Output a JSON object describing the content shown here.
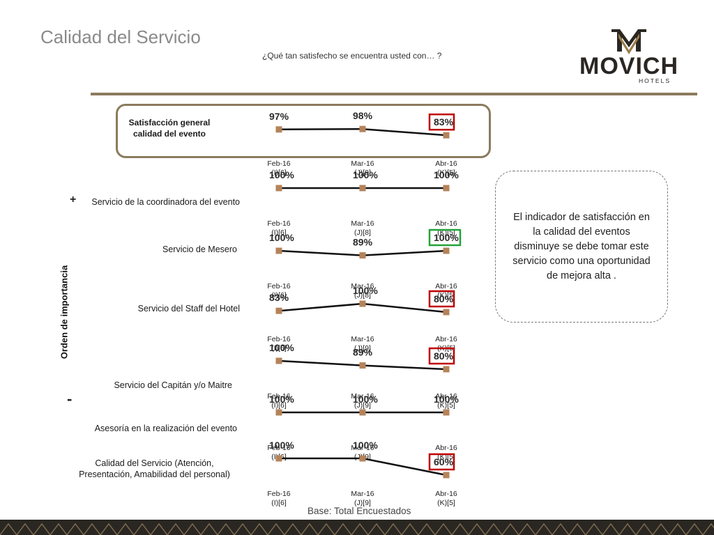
{
  "header": {
    "title": "Calidad del Servicio",
    "subtitle": "¿Qué tan satisfecho se encuentra usted con… ?"
  },
  "logo": {
    "brand": "MOVICH",
    "tagline": "HOTELS"
  },
  "axis": {
    "label": "Orden de importancia",
    "plus": "+",
    "minus": "-"
  },
  "note": "El indicador de satisfacción en la calidad del eventos disminuye se debe tomar este servicio como una oportunidad de mejora alta .",
  "footer": {
    "base": "Base: Total Encuestados"
  },
  "colors": {
    "marker": "#b5835a",
    "gold": "#8b7b5e",
    "red_box": "#c00000",
    "green_box": "#22a33a"
  },
  "chart_data": {
    "type": "line",
    "y_unit": "%",
    "points": [
      "Feb-16",
      "Mar-16",
      "Abr-16"
    ],
    "rows": [
      {
        "label_lines": [
          "Satisfacción general",
          "calidad del evento"
        ],
        "bold": true,
        "highlight": true,
        "values": [
          97,
          98,
          83
        ],
        "value_labels": [
          "97%",
          "98%",
          "83%"
        ],
        "box": [
          null,
          null,
          "red"
        ],
        "ticks": [
          [
            "Feb-16",
            "(I)[6]"
          ],
          [
            "Mar-16",
            "(J)[9]"
          ],
          [
            "Abr-16",
            "(K)[5]"
          ]
        ]
      },
      {
        "label_lines": [
          "Servicio de la coordinadora del evento"
        ],
        "values": [
          100,
          100,
          100
        ],
        "value_labels": [
          "100%",
          "100%",
          "100%"
        ],
        "box": [
          null,
          null,
          null
        ],
        "ticks": [
          [
            "Feb-16",
            "(I)[6]"
          ],
          [
            "Mar-16",
            "(J)[8]"
          ],
          [
            "Abr-16",
            "(K)[5]"
          ]
        ]
      },
      {
        "label_lines": [
          "Servicio  de Mesero"
        ],
        "values": [
          100,
          89,
          100
        ],
        "value_labels": [
          "100%",
          "89%",
          "100%"
        ],
        "box": [
          null,
          null,
          "green"
        ],
        "ticks": [
          [
            "Feb-16",
            "(I)[6]"
          ],
          [
            "Mar-16",
            "(J)[8]"
          ],
          [
            "Abr-16",
            "(K)[5]"
          ]
        ]
      },
      {
        "label_lines": [
          "Servicio del Staff del Hotel"
        ],
        "values": [
          83,
          100,
          80
        ],
        "value_labels": [
          "83%",
          "100%",
          "80%"
        ],
        "box": [
          null,
          null,
          "red"
        ],
        "ticks": [
          [
            "Feb-16",
            "(I)[6]"
          ],
          [
            "Mar-16",
            "(J)[9]"
          ],
          [
            "Abr-16",
            "(K)[5]"
          ]
        ]
      },
      {
        "label_lines": [
          "Servicio del Capitán y/o Maitre"
        ],
        "values": [
          100,
          89,
          80
        ],
        "value_labels": [
          "100%",
          "89%",
          "80%"
        ],
        "box": [
          null,
          null,
          "red"
        ],
        "ticks": [
          [
            "Feb-16",
            "(I)[6]"
          ],
          [
            "Mar-16",
            "(J)[9]"
          ],
          [
            "Abr-16",
            "(K)[5]"
          ]
        ]
      },
      {
        "label_lines": [
          "Asesoría en la realización del evento"
        ],
        "values": [
          100,
          100,
          100
        ],
        "value_labels": [
          "100%",
          "100%",
          "100%"
        ],
        "box": [
          null,
          null,
          null
        ],
        "ticks": [
          [
            "Feb-16",
            "(I)[6]"
          ],
          [
            "Mar-16",
            "(J)[9]"
          ],
          [
            "Abr-16",
            "(K)[5]"
          ]
        ]
      },
      {
        "label_lines": [
          "Calidad del Servicio (Atención,",
          "Presentación, Amabilidad del personal)"
        ],
        "values": [
          100,
          100,
          60
        ],
        "value_labels": [
          "100%",
          "100%",
          "60%"
        ],
        "box": [
          null,
          null,
          "red"
        ],
        "ticks": [
          [
            "Feb-16",
            "(I)[6]"
          ],
          [
            "Mar-16",
            "(J)[9]"
          ],
          [
            "Abr-16",
            "(K)[5]"
          ]
        ]
      }
    ]
  }
}
